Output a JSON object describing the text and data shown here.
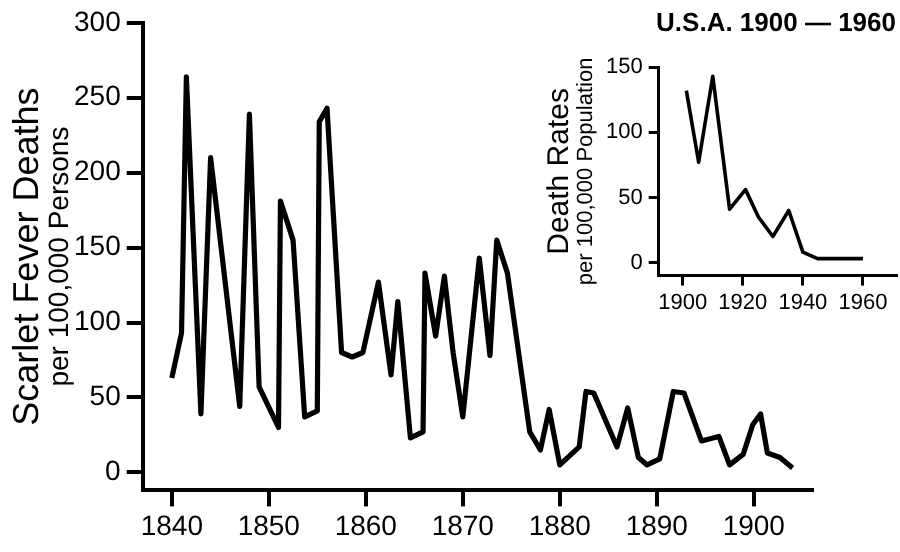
{
  "chart_data": [
    {
      "type": "line",
      "ylabel": "Scarlet Fever Deaths\nper 100,000 Persons",
      "xlim": [
        1837,
        1906
      ],
      "xticks": [
        1840,
        1850,
        1860,
        1870,
        1880,
        1890,
        1900
      ],
      "ylim": [
        -12,
        300
      ],
      "yticks": [
        0,
        50,
        100,
        150,
        200,
        250,
        300
      ],
      "grid": false,
      "legend": false,
      "marker": "none",
      "line_style": "solid",
      "series": [
        {
          "color": "#000000",
          "x": [
            1840,
            1841,
            1841.5,
            1843,
            1844,
            1847,
            1848,
            1849,
            1851,
            1851.2,
            1852.5,
            1853.7,
            1855,
            1855.2,
            1856,
            1857.5,
            1858.6,
            1859.7,
            1861.3,
            1862.6,
            1863.3,
            1864.6,
            1865.9,
            1866.1,
            1867.2,
            1868.1,
            1869,
            1870,
            1871.7,
            1872.8,
            1873.5,
            1874.6,
            1876.9,
            1878,
            1878.9,
            1880,
            1882,
            1882.7,
            1883.5,
            1885.9,
            1887,
            1888.1,
            1889,
            1890.3,
            1891.7,
            1892.8,
            1894.6,
            1896.4,
            1897.5,
            1898.9,
            1899.9,
            1900.7,
            1901.4,
            1902.7,
            1904
          ],
          "values": [
            63,
            93,
            264,
            39,
            210,
            44,
            239,
            57,
            30,
            181,
            155,
            37,
            41,
            234,
            243,
            80,
            77,
            80,
            127,
            65,
            114,
            23,
            27,
            133,
            91,
            131,
            80,
            37,
            143,
            78,
            155,
            133,
            27,
            15,
            42,
            5,
            17,
            54,
            53,
            17,
            43,
            10,
            5,
            9,
            54,
            53,
            21,
            24,
            5,
            12,
            32,
            39,
            13,
            10,
            3
          ]
        }
      ]
    },
    {
      "type": "line",
      "title": "U.S.A. 1900 — 1960",
      "ylabel": "Death Rates\nper 100,000 Population",
      "xlim": [
        1892,
        1971
      ],
      "xticks": [
        1900,
        1920,
        1940,
        1960
      ],
      "ylim": [
        -10,
        150
      ],
      "yticks": [
        0,
        50,
        100,
        150
      ],
      "grid": false,
      "legend": false,
      "marker": "none",
      "line_style": "solid",
      "series": [
        {
          "color": "#000000",
          "x": [
            1901.2,
            1905.3,
            1910,
            1915.6,
            1920.9,
            1925.2,
            1930,
            1935.3,
            1940,
            1944.9,
            1960
          ],
          "values": [
            132,
            77,
            143,
            41,
            56,
            35,
            20,
            40,
            8,
            3,
            3
          ]
        }
      ]
    }
  ]
}
